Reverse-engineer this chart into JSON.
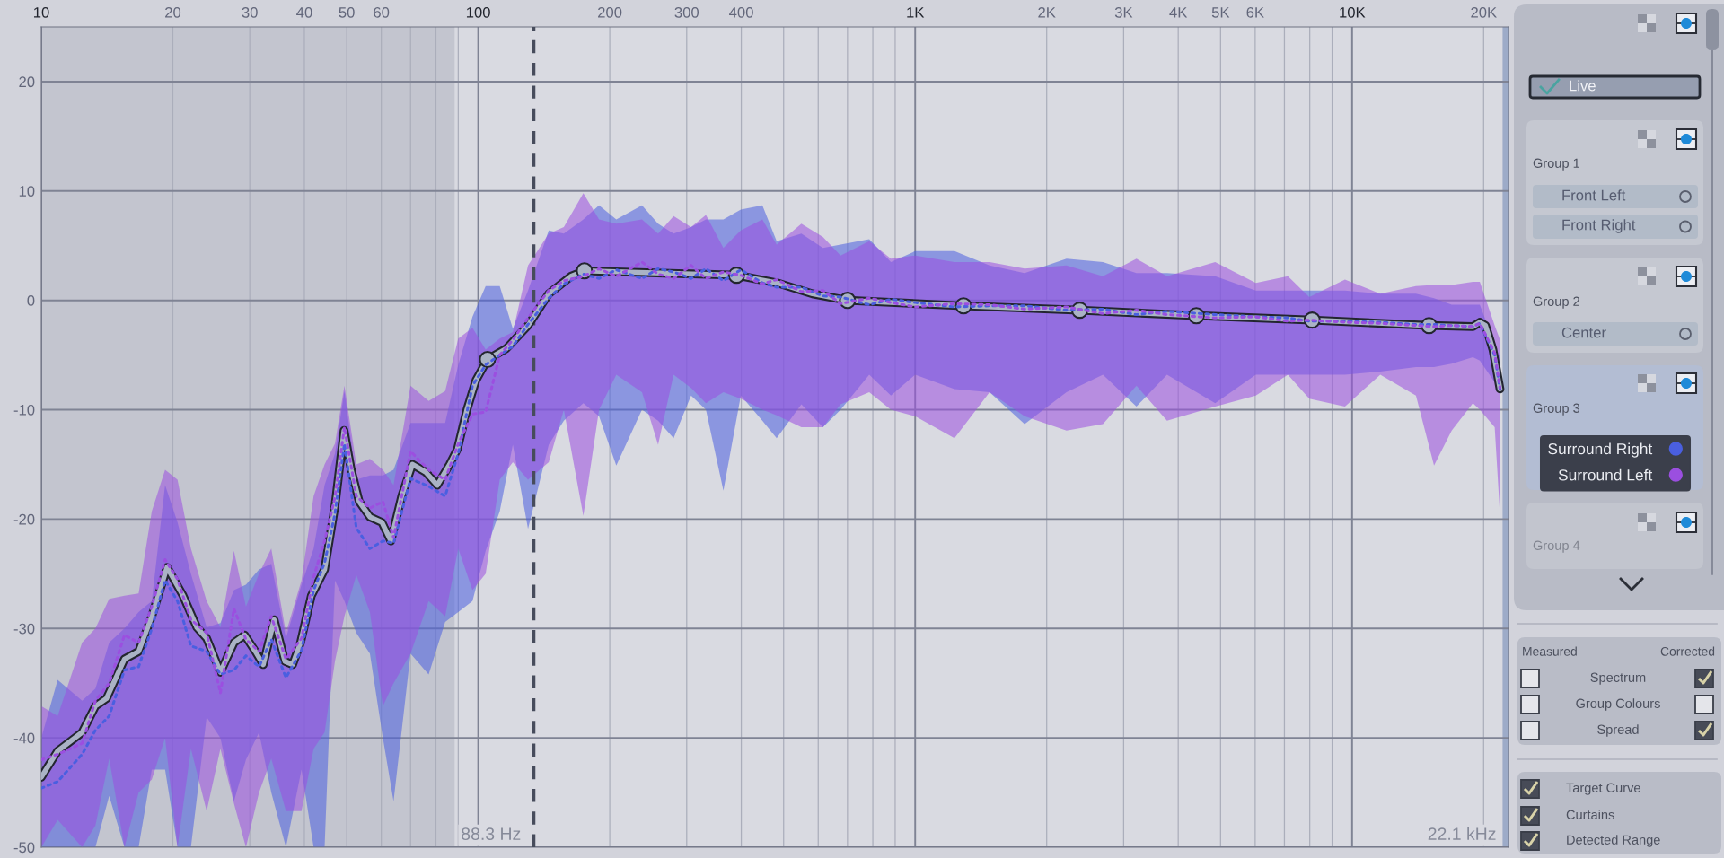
{
  "chart_data": [
    {
      "type": "line",
      "log": "x",
      "grid": true,
      "legend": "right",
      "xlim": [
        10,
        22800
      ],
      "ylim": [
        -50,
        25
      ],
      "xticks": [
        10,
        20,
        30,
        40,
        50,
        60,
        {
          "value": 70,
          "label": null
        },
        {
          "value": 80,
          "label": null
        },
        {
          "value": 90,
          "label": null
        },
        100,
        200,
        300,
        400,
        {
          "value": 500,
          "label": null
        },
        {
          "value": 600,
          "label": null
        },
        {
          "value": 700,
          "label": null
        },
        {
          "value": 800,
          "label": null
        },
        {
          "value": 900,
          "label": null
        },
        {
          "value": 1000,
          "label": "1K"
        },
        {
          "value": 2000,
          "label": "2K"
        },
        {
          "value": 3000,
          "label": "3K"
        },
        {
          "value": 4000,
          "label": "4K"
        },
        {
          "value": 5000,
          "label": "5K"
        },
        {
          "value": 6000,
          "label": "6K"
        },
        {
          "value": 7000,
          "label": null
        },
        {
          "value": 8000,
          "label": null
        },
        {
          "value": 9000,
          "label": null
        },
        {
          "value": 10000,
          "label": "10K"
        },
        {
          "value": 20000,
          "label": "20K"
        }
      ],
      "yticks": [
        -50,
        -40,
        -30,
        -20,
        -10,
        0,
        10,
        20
      ],
      "bands": [
        {
          "axis": "x",
          "from": 10,
          "to": 88.3,
          "label": "88.3 Hz",
          "color": "#c3c5cf"
        },
        {
          "axis": "x",
          "from": 22100,
          "to": 22800,
          "label": "22.1 kHz",
          "color": "#9dabc8"
        }
      ],
      "ref_lines": [
        {
          "axis": "x",
          "value": 134,
          "color": "#474c5c",
          "line_style": "dashed"
        }
      ],
      "series": [
        {
          "name": "Surround Right",
          "type": "line",
          "color": "#4a5fe0",
          "line_style": "dotted",
          "x": [
            10,
            10.9,
            12.4,
            13.3,
            14.3,
            15.5,
            16.7,
            17.9,
            19.2,
            20.5,
            22,
            23.9,
            25.7,
            27.6,
            29.4,
            31.5,
            33.6,
            36.3,
            39.4,
            42,
            44.5,
            47,
            49.4,
            52.6,
            56.5,
            60.5,
            64,
            70,
            77,
            84,
            90,
            97,
            104,
            112,
            120,
            130,
            145,
            157,
            174,
            189,
            207,
            237,
            258,
            280,
            307,
            332,
            364,
            399,
            447,
            482,
            549,
            615,
            675,
            785,
            880,
            1000,
            1230,
            1480,
            1780,
            2220,
            2690,
            3210,
            3770,
            4860,
            6020,
            7130,
            7980,
            9630,
            11600,
            14000,
            15400,
            16900,
            18900,
            19600,
            21200,
            21800
          ],
          "values": [
            -44.6,
            -44.0,
            -41.5,
            -39.3,
            -38.0,
            -33.8,
            -33.5,
            -30.0,
            -25.6,
            -27.5,
            -31.6,
            -32.1,
            -34.2,
            -33.8,
            -32.5,
            -33.5,
            -31.0,
            -34.5,
            -32.0,
            -26.5,
            -24.0,
            -19.5,
            -13.1,
            -20.8,
            -22.7,
            -22.0,
            -22.2,
            -16.3,
            -17.0,
            -17.9,
            -14.0,
            -7.8,
            -5.9,
            -5.0,
            -4.2,
            -2.2,
            0.2,
            1.5,
            2.4,
            2.0,
            2.8,
            2.0,
            2.9,
            2.6,
            2.0,
            2.9,
            1.8,
            2.8,
            1.6,
            1.2,
            1.2,
            0.4,
            0.3,
            -0.4,
            0.1,
            -0.2,
            -0.6,
            -0.5,
            -0.5,
            -0.9,
            -0.8,
            -1.3,
            -1.0,
            -1.3,
            -1.5,
            -1.6,
            -1.9,
            -1.9,
            -2.0,
            -2.2,
            -2.2,
            -2.3,
            -2.4,
            -2.1,
            -5.0,
            -8.1
          ],
          "lower": [
            -50,
            -50,
            -50,
            -50,
            -45.3,
            -50,
            -50,
            -42.9,
            -42.9,
            -50,
            -50,
            -38.1,
            -40.0,
            -45.8,
            -42.0,
            -39.5,
            -45.0,
            -50,
            -42.9,
            -50,
            -50,
            -25.6,
            -27.5,
            -30.4,
            -32.3,
            -40.0,
            -45.8,
            -32.3,
            -34.2,
            -29.4,
            -28.5,
            -27.5,
            -22.9,
            -19.3,
            -13.2,
            -20.9,
            -13.2,
            -11.0,
            -9.4,
            -10.6,
            -15.1,
            -10.0,
            -11.0,
            -12.6,
            -8.7,
            -10.0,
            -17.4,
            -8.7,
            -11.0,
            -12.6,
            -9.5,
            -11.6,
            -10.0,
            -6.8,
            -8.7,
            -6.8,
            -8.1,
            -8.4,
            -11.3,
            -8.4,
            -6.8,
            -9.7,
            -6.8,
            -9.4,
            -6.8,
            -6.8,
            -6.8,
            -6.8,
            -6.5,
            -6.1,
            -6.1,
            -5.8,
            -5.2,
            -5.5,
            -7.5,
            -8.5
          ],
          "upper": [
            -40.0,
            -34.7,
            -36.6,
            -35.5,
            -31.3,
            -30.0,
            -28.5,
            -27.5,
            -16.9,
            -20.3,
            -25.0,
            -29.9,
            -29.5,
            -26.5,
            -26.0,
            -24.6,
            -24.1,
            -30.9,
            -26.0,
            -22.7,
            -16.9,
            -14.0,
            -8.3,
            -16.4,
            -16.0,
            -16.0,
            -15.5,
            -11.2,
            -11.2,
            -11.2,
            -5.9,
            -1.5,
            1.3,
            1.3,
            -2.6,
            0.9,
            6.4,
            6.1,
            7.4,
            8.7,
            7.4,
            8.7,
            7.0,
            6.1,
            6.7,
            7.4,
            7.4,
            8.3,
            8.7,
            5.4,
            6.1,
            4.8,
            5.1,
            5.6,
            3.5,
            4.5,
            4.5,
            3.2,
            2.5,
            3.8,
            3.5,
            2.5,
            2.5,
            2.2,
            0.9,
            0.9,
            0.9,
            0.9,
            0.6,
            0.6,
            0.2,
            -0.4,
            -0.4,
            -0.4,
            -4.0,
            -5.2
          ]
        },
        {
          "name": "Surround Left",
          "type": "line",
          "color": "#9b4fe0",
          "line_style": "dotted",
          "x": [
            10,
            10.9,
            12.4,
            13.3,
            14.3,
            15.5,
            16.7,
            17.9,
            19.2,
            20.5,
            22,
            23.9,
            25.7,
            27.6,
            29.4,
            31.5,
            33.6,
            36.3,
            39.4,
            42,
            44.5,
            47,
            49.4,
            52.6,
            56.5,
            60.5,
            64,
            70,
            77,
            84,
            90,
            97,
            104,
            112,
            120,
            130,
            145,
            157,
            174,
            189,
            207,
            237,
            258,
            280,
            307,
            332,
            364,
            399,
            447,
            482,
            549,
            615,
            675,
            785,
            880,
            1000,
            1230,
            1480,
            1780,
            2220,
            2690,
            3210,
            3770,
            4860,
            6020,
            7130,
            7980,
            9630,
            11600,
            14000,
            15400,
            16900,
            18900,
            19600,
            21200,
            21800
          ],
          "values": [
            -42.0,
            -41.5,
            -40.5,
            -36.6,
            -35.0,
            -30.6,
            -31.3,
            -28.0,
            -23.7,
            -25.5,
            -29.2,
            -30.4,
            -35.9,
            -28.2,
            -31.0,
            -32.1,
            -28.9,
            -32.8,
            -30.9,
            -25.3,
            -22.0,
            -18.0,
            -11.6,
            -17.9,
            -19.0,
            -18.4,
            -21.7,
            -13.8,
            -15.5,
            -16.4,
            -13.1,
            -10.4,
            -10.2,
            -5.0,
            -3.6,
            -1.6,
            0.9,
            1.8,
            2.2,
            2.9,
            2.2,
            3.5,
            2.4,
            2.0,
            3.2,
            2.0,
            2.6,
            2.3,
            1.5,
            1.9,
            0.8,
            0.9,
            -0.3,
            0.2,
            -0.2,
            -0.6,
            -0.3,
            -0.4,
            -0.8,
            -0.6,
            -1.2,
            -0.9,
            -1.3,
            -1.6,
            -1.5,
            -1.9,
            -1.8,
            -2.0,
            -2.1,
            -2.3,
            -2.4,
            -2.3,
            -2.4,
            -2.1,
            -4.8,
            -8.0
          ],
          "lower": [
            -50,
            -47.5,
            -50,
            -48.0,
            -41.9,
            -50,
            -45.0,
            -43.8,
            -40.0,
            -50,
            -41.0,
            -46.7,
            -41.0,
            -46.0,
            -50,
            -45.0,
            -41.9,
            -46.7,
            -46.7,
            -41.0,
            -39.5,
            -33.0,
            -28.9,
            -25.1,
            -28.5,
            -37.1,
            -35.0,
            -32.3,
            -27.5,
            -28.9,
            -22.7,
            -26.5,
            -25.0,
            -16.4,
            -14.8,
            -16.4,
            -14.8,
            -10.0,
            -19.7,
            -10.0,
            -6.8,
            -8.4,
            -13.2,
            -6.8,
            -8.0,
            -9.4,
            -8.4,
            -9.0,
            -10.0,
            -10.5,
            -11.6,
            -11.6,
            -9.5,
            -8.4,
            -10.0,
            -10.6,
            -12.6,
            -8.4,
            -10.6,
            -11.9,
            -11.3,
            -7.8,
            -11.0,
            -9.7,
            -8.7,
            -6.8,
            -9.0,
            -9.7,
            -6.8,
            -8.7,
            -15.1,
            -11.9,
            -9.4,
            -10.0,
            -11.6,
            -19.6
          ],
          "upper": [
            -37.1,
            -38.0,
            -31.3,
            -30.0,
            -27.3,
            -27.0,
            -26.8,
            -19.3,
            -15.5,
            -16.4,
            -22.7,
            -27.5,
            -29.9,
            -22.9,
            -28.0,
            -25.0,
            -22.7,
            -30.4,
            -25.6,
            -17.9,
            -15.0,
            -13.1,
            -7.8,
            -15.0,
            -14.5,
            -15.5,
            -16.9,
            -7.8,
            -9.2,
            -8.3,
            -3.5,
            -2.5,
            -4.5,
            -3.5,
            -2.9,
            3.2,
            6.1,
            6.7,
            9.8,
            7.4,
            7.0,
            7.4,
            6.1,
            7.7,
            6.7,
            7.8,
            4.8,
            6.4,
            7.4,
            5.1,
            7.0,
            5.8,
            4.1,
            5.4,
            3.8,
            4.1,
            3.5,
            3.5,
            2.9,
            3.2,
            2.2,
            3.8,
            2.2,
            3.5,
            1.6,
            2.2,
            0.3,
            1.9,
            0.6,
            1.3,
            1.4,
            1.4,
            1.7,
            1.7,
            -2.3,
            -3.6
          ]
        },
        {
          "type": "line",
          "color": "#aab3c5",
          "x": [
            10,
            10.9,
            12.4,
            13.3,
            14.1,
            15.5,
            16.7,
            17.9,
            19.4,
            21.1,
            22.7,
            23.9,
            25.7,
            27.6,
            29.2,
            30.9,
            32.2,
            34.1,
            36.1,
            37.6,
            39.2,
            41.5,
            44.5,
            47.0,
            49.3,
            51.2,
            53.4,
            56.5,
            60.2,
            63.1,
            66.8,
            70.7,
            75.8,
            80.6,
            86,
            89.6,
            94.2,
            98.8,
            105,
            116,
            130,
            145,
            163,
            175,
            390,
            483,
            582,
            700,
            1290,
            2380,
            4400,
            8100,
            15000,
            18900,
            19600,
            20200,
            21000,
            21800
          ],
          "values": [
            -43.6,
            -41.2,
            -39.5,
            -37.1,
            -36.4,
            -32.8,
            -32.1,
            -28.9,
            -24.4,
            -27.0,
            -29.9,
            -30.9,
            -34.0,
            -31.3,
            -30.6,
            -32.1,
            -33.3,
            -29.2,
            -33.0,
            -33.3,
            -31.3,
            -27.0,
            -24.6,
            -18.8,
            -11.9,
            -15.5,
            -18.4,
            -19.8,
            -20.3,
            -22.0,
            -17.9,
            -15.0,
            -15.7,
            -16.9,
            -15.0,
            -13.6,
            -10.0,
            -7.3,
            -5.4,
            -4.4,
            -2.3,
            0.6,
            2.2,
            2.7,
            2.3,
            1.6,
            0.6,
            0.0,
            -0.5,
            -0.9,
            -1.4,
            -1.8,
            -2.3,
            -2.4,
            -2.0,
            -2.3,
            -4.5,
            -8.1
          ]
        },
        {
          "type": "scatter",
          "color": "#aab3c5",
          "marker": "circle",
          "x": [
            105,
            175,
            390,
            700,
            1290,
            2380,
            4400,
            8100,
            15000
          ],
          "values": [
            -5.4,
            2.7,
            2.3,
            0.0,
            -0.5,
            -0.9,
            -1.4,
            -1.8,
            -2.3
          ]
        }
      ]
    },
    {
      "type": "other",
      "annotations": [
        "Live",
        "Group 1",
        "Front Left",
        "Front Right",
        "Group 2",
        "Center",
        "Group 3",
        "Group 4",
        "Measured",
        "Corrected",
        "Spectrum",
        "Group Colours",
        "Spread",
        "Target Curve",
        "Curtains",
        "Detected Range"
      ]
    }
  ]
}
